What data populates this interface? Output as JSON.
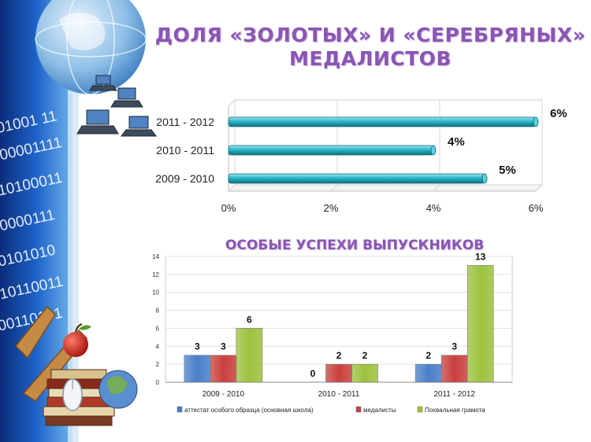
{
  "slide": {
    "title_line1": "ДОЛЯ «ЗОЛОТЫХ» И «СЕРЕБРЯНЫХ»",
    "title_line2": "МЕДАЛИСТОВ",
    "subtitle": "ОСОБЫЕ УСПЕХИ ВЫПУСКНИКОВ"
  },
  "decor": {
    "binary_lines": [
      "01001 11",
      "00001111",
      "10100011",
      "0000111",
      "0101010",
      "10110011",
      "00110101"
    ],
    "icons": [
      "globe-icon",
      "laptop-icon",
      "apple-icon",
      "books-icon",
      "mouse-icon"
    ]
  },
  "chart_data": [
    {
      "type": "bar",
      "orientation": "horizontal",
      "categories": [
        "2011 - 2012",
        "2010 - 2011",
        "2009 - 2010"
      ],
      "values": [
        6,
        4,
        5
      ],
      "value_labels": [
        "6%",
        "4%",
        "5%"
      ],
      "xticks": [
        "0%",
        "2%",
        "4%",
        "6%"
      ],
      "xlim": [
        0,
        6
      ],
      "grid": true,
      "legend": "none",
      "color": "#2bb5c8"
    },
    {
      "type": "bar",
      "categories": [
        "2009 - 2010",
        "2010 - 2011",
        "2011 - 2012"
      ],
      "series": [
        {
          "name": "аттестат особого образца (основная школа)",
          "values": [
            3,
            0,
            2
          ],
          "color": "#4a7fc9"
        },
        {
          "name": "медалисты",
          "values": [
            3,
            2,
            3
          ],
          "color": "#c9403d"
        },
        {
          "name": "Похвальная грамота",
          "values": [
            6,
            2,
            13
          ],
          "color": "#9cc23e"
        }
      ],
      "ylim": [
        0,
        14
      ],
      "yticks": [
        "0",
        "2",
        "4",
        "6",
        "8",
        "10",
        "12",
        "14"
      ],
      "grid": true,
      "legend": "bottom"
    }
  ]
}
